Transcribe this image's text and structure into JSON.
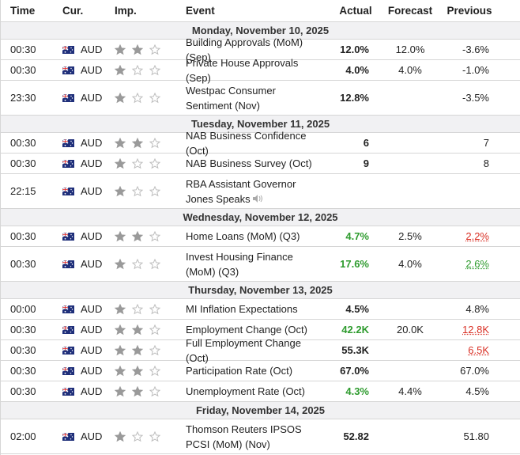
{
  "header": {
    "columns": [
      "Time",
      "Cur.",
      "Imp.",
      "Event",
      "Actual",
      "Forecast",
      "Previous"
    ]
  },
  "days": [
    {
      "date": "Monday, November 10, 2025",
      "events": [
        {
          "time": "00:30",
          "currency": "AUD",
          "importance": 2,
          "event": "Building Approvals (MoM) (Sep)",
          "actual": "12.0%",
          "forecast": "12.0%",
          "previous": "-3.6%"
        },
        {
          "time": "00:30",
          "currency": "AUD",
          "importance": 1,
          "event": "Private House Approvals (Sep)",
          "actual": "4.0%",
          "forecast": "4.0%",
          "previous": "-1.0%"
        },
        {
          "time": "23:30",
          "currency": "AUD",
          "importance": 1,
          "event": "Westpac Consumer Sentiment (Nov)",
          "actual": "12.8%",
          "forecast": null,
          "previous": "-3.5%"
        }
      ]
    },
    {
      "date": "Tuesday, November 11, 2025",
      "events": [
        {
          "time": "00:30",
          "currency": "AUD",
          "importance": 2,
          "event": "NAB Business Confidence (Oct)",
          "actual": "6",
          "forecast": null,
          "previous": "7"
        },
        {
          "time": "00:30",
          "currency": "AUD",
          "importance": 1,
          "event": "NAB Business Survey (Oct)",
          "actual": "9",
          "forecast": null,
          "previous": "8"
        },
        {
          "time": "22:15",
          "currency": "AUD",
          "importance": 1,
          "event": "RBA Assistant Governor Jones Speaks",
          "actual": null,
          "forecast": null,
          "previous": null,
          "has_audio": true
        }
      ]
    },
    {
      "date": "Wednesday, November 12, 2025",
      "events": [
        {
          "time": "00:30",
          "currency": "AUD",
          "importance": 2,
          "event": "Home Loans (MoM) (Q3)",
          "actual": "4.7%",
          "actual_color": "#2e9b2e",
          "forecast": "2.5%",
          "previous": "2.2%",
          "previous_color": "#d93025"
        },
        {
          "time": "00:30",
          "currency": "AUD",
          "importance": 1,
          "event": "Invest Housing Finance (MoM) (Q3)",
          "actual": "17.6%",
          "actual_color": "#2e9b2e",
          "forecast": "4.0%",
          "previous": "2.6%",
          "previous_color": "#2e9b2e"
        }
      ]
    },
    {
      "date": "Thursday, November 13, 2025",
      "events": [
        {
          "time": "00:00",
          "currency": "AUD",
          "importance": 1,
          "event": "MI Inflation Expectations",
          "actual": "4.5%",
          "forecast": null,
          "previous": "4.8%"
        },
        {
          "time": "00:30",
          "currency": "AUD",
          "importance": 2,
          "event": "Employment Change (Oct)",
          "actual": "42.2K",
          "actual_color": "#2e9b2e",
          "forecast": "20.0K",
          "previous": "12.8K",
          "previous_color": "#d93025"
        },
        {
          "time": "00:30",
          "currency": "AUD",
          "importance": 2,
          "event": "Full Employment Change (Oct)",
          "actual": "55.3K",
          "forecast": null,
          "previous": "6.5K",
          "previous_color": "#d93025"
        },
        {
          "time": "00:30",
          "currency": "AUD",
          "importance": 2,
          "event": "Participation Rate (Oct)",
          "actual": "67.0%",
          "forecast": null,
          "previous": "67.0%"
        },
        {
          "time": "00:30",
          "currency": "AUD",
          "importance": 2,
          "event": "Unemployment Rate (Oct)",
          "actual": "4.3%",
          "actual_color": "#2e9b2e",
          "forecast": "4.4%",
          "previous": "4.5%"
        }
      ]
    },
    {
      "date": "Friday, November 14, 2025",
      "events": [
        {
          "time": "02:00",
          "currency": "AUD",
          "importance": 1,
          "event": "Thomson Reuters IPSOS PCSI (MoM) (Nov)",
          "actual": "52.82",
          "forecast": null,
          "previous": "51.80"
        }
      ]
    }
  ]
}
